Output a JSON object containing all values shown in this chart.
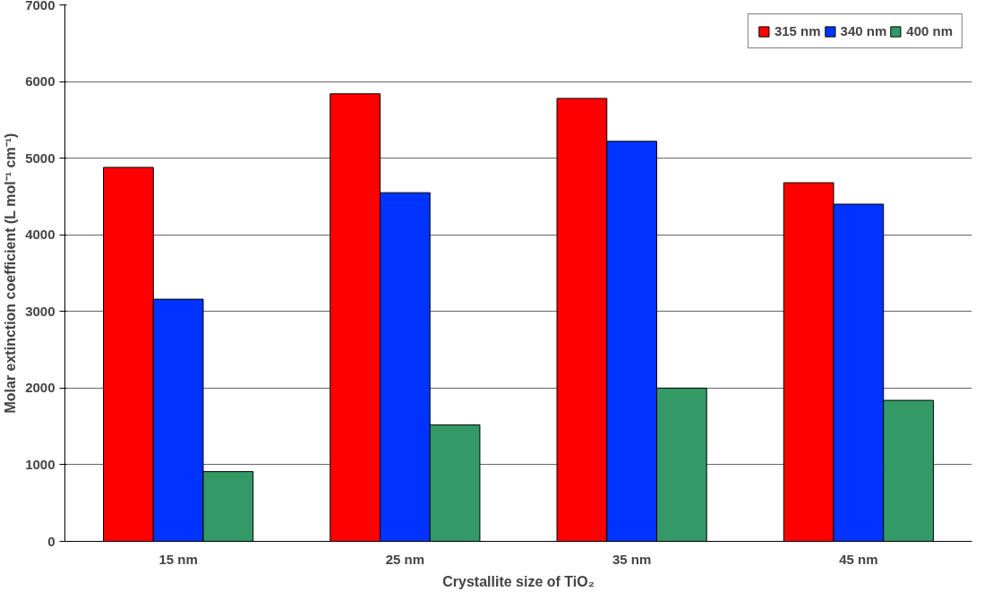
{
  "chart_data": {
    "type": "bar",
    "xlabel": "Crystallite size of TiO₂",
    "ylabel": "Molar extinction coefficient (L mol⁻¹ cm⁻¹)",
    "categories": [
      "15 nm",
      "25 nm",
      "35 nm",
      "45 nm"
    ],
    "series": [
      {
        "name": "315 nm",
        "color": "#ff0000",
        "values": [
          4880,
          5840,
          5780,
          4680
        ]
      },
      {
        "name": "340 nm",
        "color": "#0033ff",
        "values": [
          3160,
          4550,
          5220,
          4400
        ]
      },
      {
        "name": "400 nm",
        "color": "#339966",
        "values": [
          910,
          1520,
          2000,
          1840
        ]
      }
    ],
    "ylim": [
      0,
      7000
    ],
    "yticks": [
      0,
      1000,
      2000,
      3000,
      4000,
      5000,
      6000,
      7000
    ],
    "grid": "y",
    "legend": "top right"
  }
}
